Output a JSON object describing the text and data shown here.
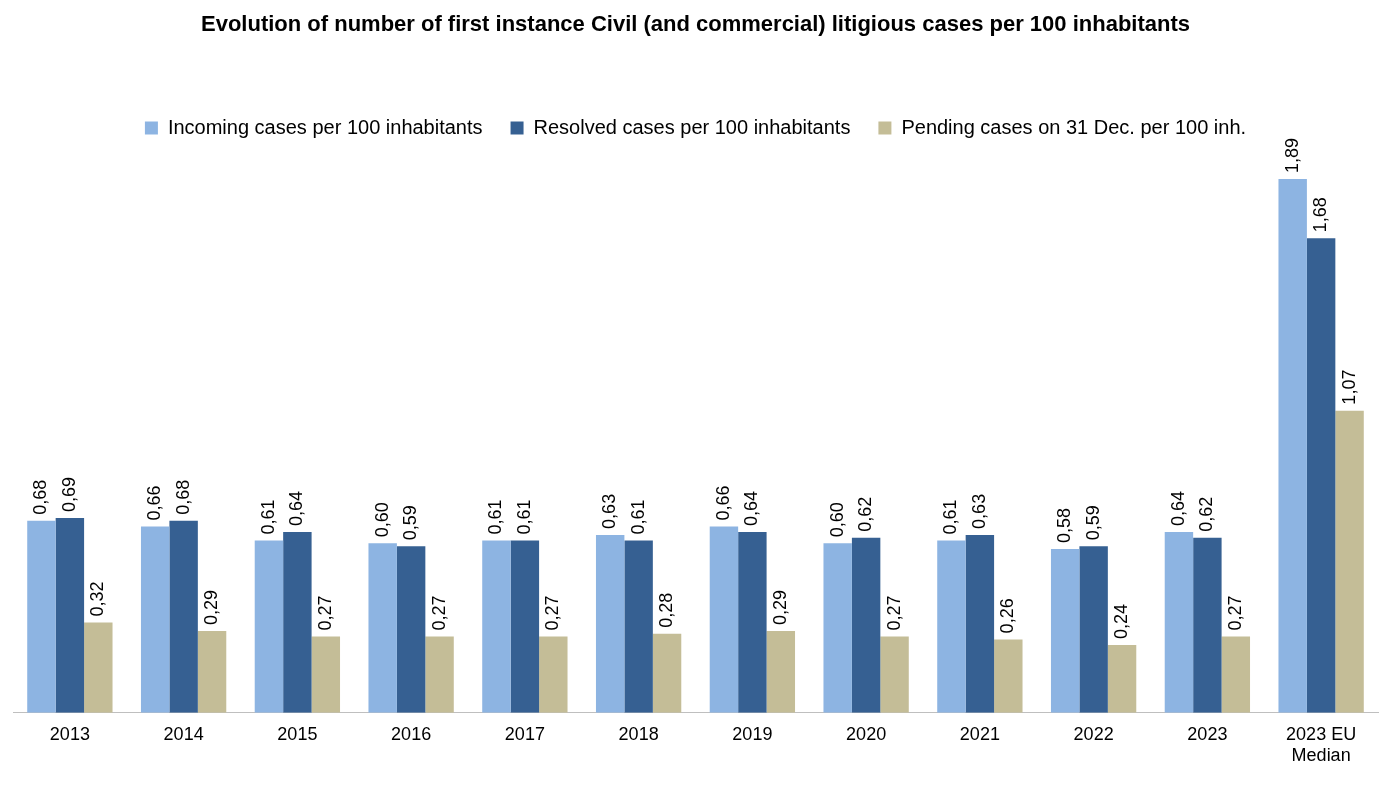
{
  "chart_data": {
    "type": "bar",
    "title": "Evolution of number of first instance Civil (and commercial) litigious cases per 100 inhabitants",
    "categories": [
      "2013",
      "2014",
      "2015",
      "2016",
      "2017",
      "2018",
      "2019",
      "2020",
      "2021",
      "2022",
      "2023",
      "2023 EU Median"
    ],
    "series": [
      {
        "name": "Incoming cases per 100 inhabitants",
        "color": "#8db4e2",
        "values": [
          0.68,
          0.66,
          0.61,
          0.6,
          0.61,
          0.63,
          0.66,
          0.6,
          0.61,
          0.58,
          0.64,
          1.89
        ],
        "value_labels": [
          "0,68",
          "0,66",
          "0,61",
          "0,60",
          "0,61",
          "0,63",
          "0,66",
          "0,60",
          "0,61",
          "0,58",
          "0,64",
          "1,89"
        ]
      },
      {
        "name": "Resolved cases per 100 inhabitants",
        "color": "#366092",
        "values": [
          0.69,
          0.68,
          0.64,
          0.59,
          0.61,
          0.61,
          0.64,
          0.62,
          0.63,
          0.59,
          0.62,
          1.68
        ],
        "value_labels": [
          "0,69",
          "0,68",
          "0,64",
          "0,59",
          "0,61",
          "0,61",
          "0,64",
          "0,62",
          "0,63",
          "0,59",
          "0,62",
          "1,68"
        ]
      },
      {
        "name": "Pending cases on 31 Dec. per 100 inh.",
        "color": "#c4bd97",
        "values": [
          0.32,
          0.29,
          0.27,
          0.27,
          0.27,
          0.28,
          0.29,
          0.27,
          0.26,
          0.24,
          0.27,
          1.07
        ],
        "value_labels": [
          "0,32",
          "0,29",
          "0,27",
          "0,27",
          "0,27",
          "0,28",
          "0,29",
          "0,27",
          "0,26",
          "0,24",
          "0,27",
          "1,07"
        ]
      }
    ],
    "legend": "top",
    "grid": false,
    "tick_labels": "x"
  }
}
